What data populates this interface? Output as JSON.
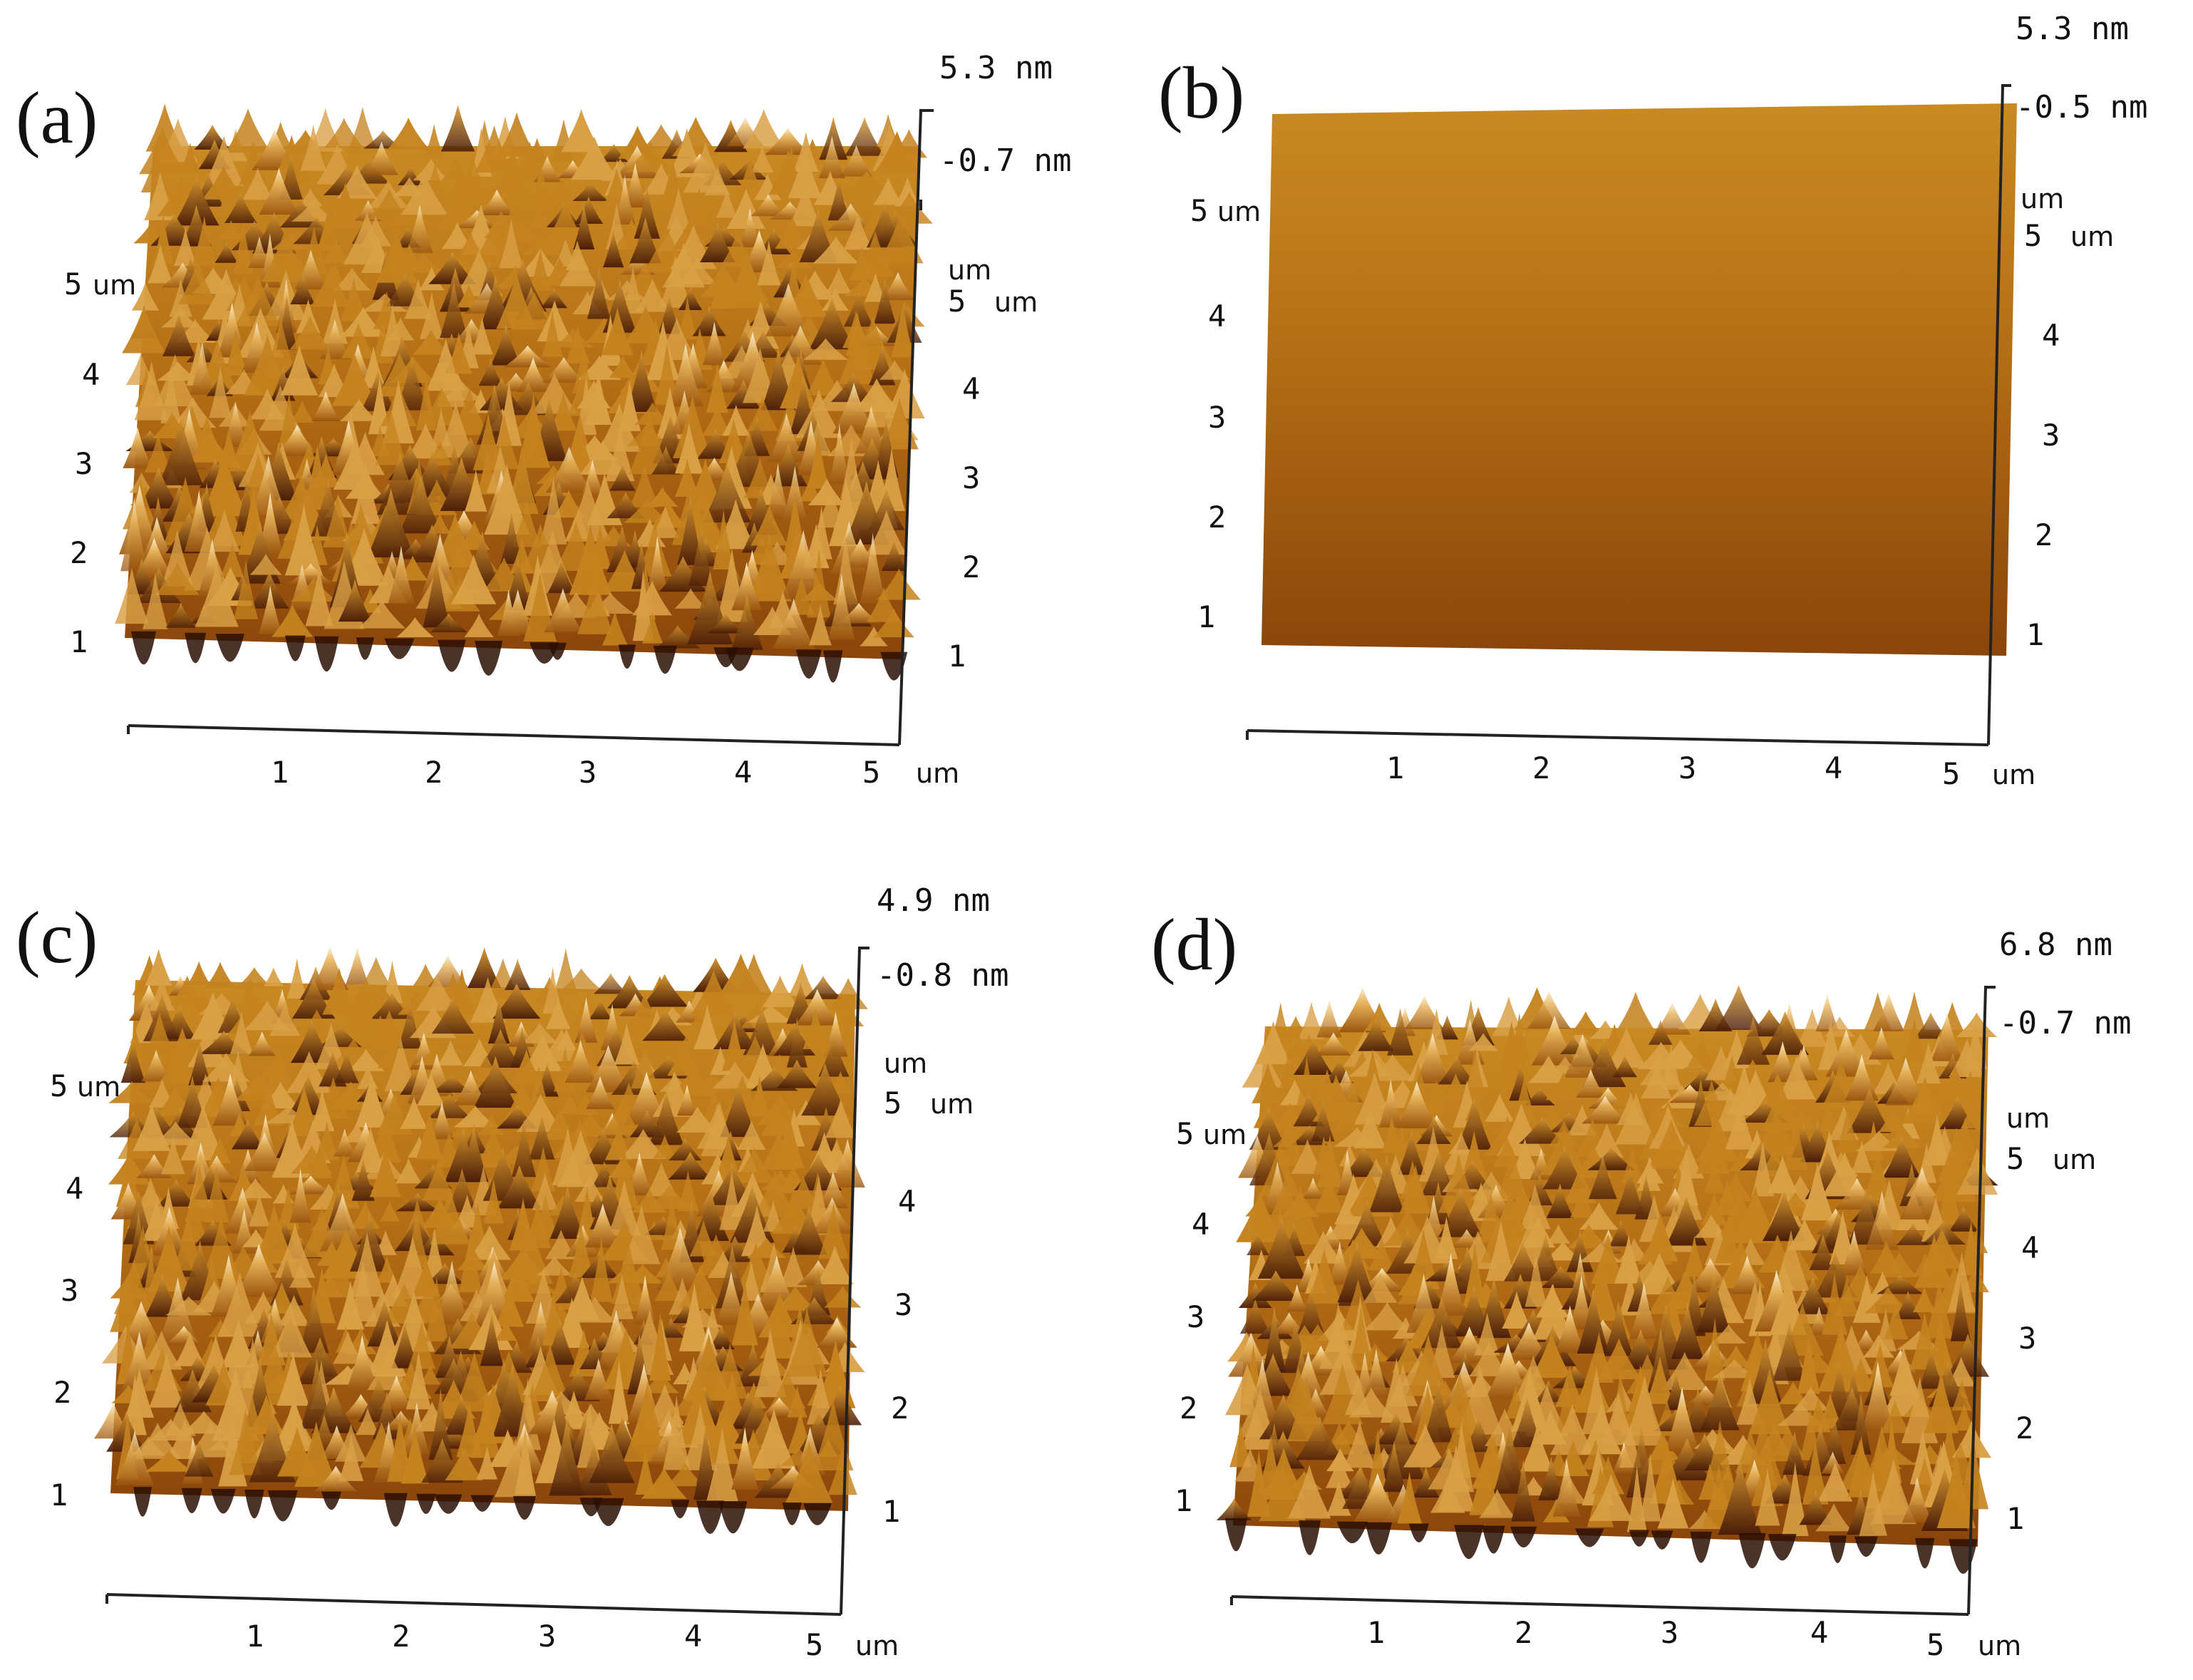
{
  "figure": {
    "panels": [
      {
        "id": "a",
        "label": "(a)",
        "z_max": "5.3 nm",
        "z_min": "-0.7 nm",
        "x_ticks": [
          "1",
          "2",
          "3",
          "4",
          "5"
        ],
        "x_unit": "um",
        "y_left_ticks": [
          "1",
          "2",
          "3",
          "4",
          "5"
        ],
        "y_left_top_unit": "um",
        "y_right_ticks": [
          "1",
          "2",
          "3",
          "4",
          "5"
        ],
        "y_right_top_tick": "5",
        "y_right_unit_top": "um",
        "y_right_unit": "um"
      },
      {
        "id": "b",
        "label": "(b)",
        "z_max": "5.3 nm",
        "z_min": "-0.5 nm",
        "x_ticks": [
          "1",
          "2",
          "3",
          "4",
          "5"
        ],
        "x_unit": "um",
        "y_left_ticks": [
          "1",
          "2",
          "3",
          "4",
          "5"
        ],
        "y_left_top_unit": "um",
        "y_right_ticks": [
          "1",
          "2",
          "3",
          "4",
          "5"
        ],
        "y_right_top_tick": "5",
        "y_right_unit_top": "um",
        "y_right_unit": "um"
      },
      {
        "id": "c",
        "label": "(c)",
        "z_max": "4.9 nm",
        "z_min": "-0.8 nm",
        "x_ticks": [
          "1",
          "2",
          "3",
          "4",
          "5"
        ],
        "x_unit": "um",
        "y_left_ticks": [
          "1",
          "2",
          "3",
          "4",
          "5"
        ],
        "y_left_top_unit": "um",
        "y_right_ticks": [
          "1",
          "2",
          "3",
          "4",
          "5"
        ],
        "y_right_top_tick": "5",
        "y_right_unit_top": "um",
        "y_right_unit": "um"
      },
      {
        "id": "d",
        "label": "(d)",
        "z_max": "6.8 nm",
        "z_min": "-0.7 nm",
        "x_ticks": [
          "1",
          "2",
          "3",
          "4",
          "5"
        ],
        "x_unit": "um",
        "y_left_ticks": [
          "1",
          "2",
          "3",
          "4",
          "5"
        ],
        "y_left_top_unit": "um",
        "y_right_ticks": [
          "1",
          "2",
          "3",
          "4",
          "5"
        ],
        "y_right_top_tick": "5",
        "y_right_unit_top": "um",
        "y_right_unit": "um"
      }
    ]
  },
  "colors": {
    "surface_dark": "#3a1606",
    "surface_mid": "#a8620f",
    "surface_gold": "#d29a2e",
    "surface_light": "#f1d79a",
    "surface_highlight": "#fbf3df",
    "axis": "#222222"
  }
}
